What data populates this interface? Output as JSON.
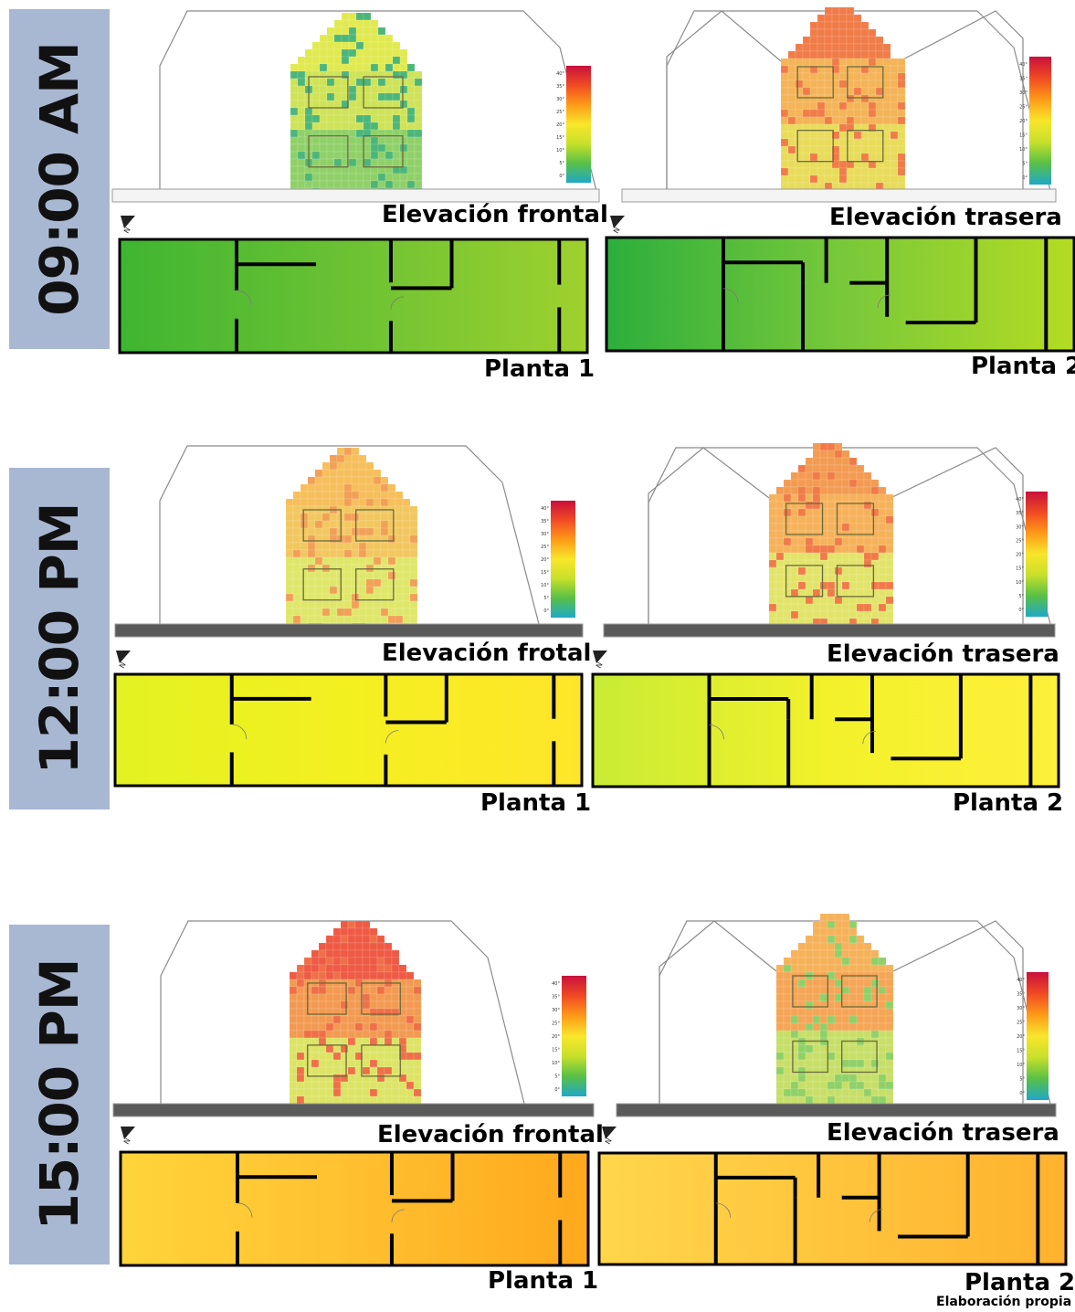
{
  "panels": [
    {
      "time": "09:00 AM",
      "front_label": "Elevación frontal",
      "rear_label": "Elevación trasera",
      "plan1_label": "Planta 1",
      "plan2_label": "Planta 2",
      "front_colors": {
        "roof": "#e0ea50",
        "upper": "#cfe358",
        "lower": "#8fd068",
        "accent": "#4cb67a"
      },
      "rear_colors": {
        "roof": "#f07c48",
        "upper": "#f4b457",
        "lower": "#e8dc5a",
        "accent": "#f07c48"
      },
      "plan1_colors": [
        "#3fb531",
        "#6cc233",
        "#9fd12e"
      ],
      "plan2_colors": [
        "#2cae3c",
        "#78c83a",
        "#b4dc22"
      ]
    },
    {
      "time": "12:00 PM",
      "front_label": "Elevación frotal",
      "rear_label": "Elevación trasera",
      "plan1_label": "Planta 1",
      "plan2_label": "Planta 2",
      "front_colors": {
        "roof": "#f6bf5b",
        "upper": "#f2c760",
        "lower": "#dfe76a",
        "accent": "#f2a057"
      },
      "rear_colors": {
        "roof": "#f39b52",
        "upper": "#f6b25a",
        "lower": "#e2e46a",
        "accent": "#f07a48"
      },
      "plan1_colors": [
        "#e3f221",
        "#f4f020",
        "#ffe52a"
      ],
      "plan2_colors": [
        "#c8ec35",
        "#f2f12a",
        "#fff03a"
      ]
    },
    {
      "time": "15:00 PM",
      "front_label": "Elevación frontal",
      "rear_label": "Elevación trasera",
      "plan1_label": "Planta 1",
      "plan2_label": "Planta 2",
      "front_colors": {
        "roof": "#ee5a44",
        "upper": "#f39a52",
        "lower": "#dce466",
        "accent": "#ef6f48"
      },
      "rear_colors": {
        "roof": "#f6b25a",
        "upper": "#f5a556",
        "lower": "#c7df68",
        "accent": "#8fd068"
      },
      "plan1_colors": [
        "#ffd43a",
        "#ffc030",
        "#ffa81c"
      ],
      "plan2_colors": [
        "#ffd64a",
        "#ffc43c",
        "#ffb22e"
      ]
    }
  ],
  "scale_ticks": [
    "40°",
    "35°",
    "30°",
    "25°",
    "20°",
    "15°",
    "10°",
    "5°",
    "0°"
  ],
  "scale_colors": [
    "#c9103c",
    "#f04a24",
    "#ff9a18",
    "#f8e62a",
    "#c8e02a",
    "#58c046",
    "#1fa8c8"
  ],
  "credit": "Elaboración propia"
}
